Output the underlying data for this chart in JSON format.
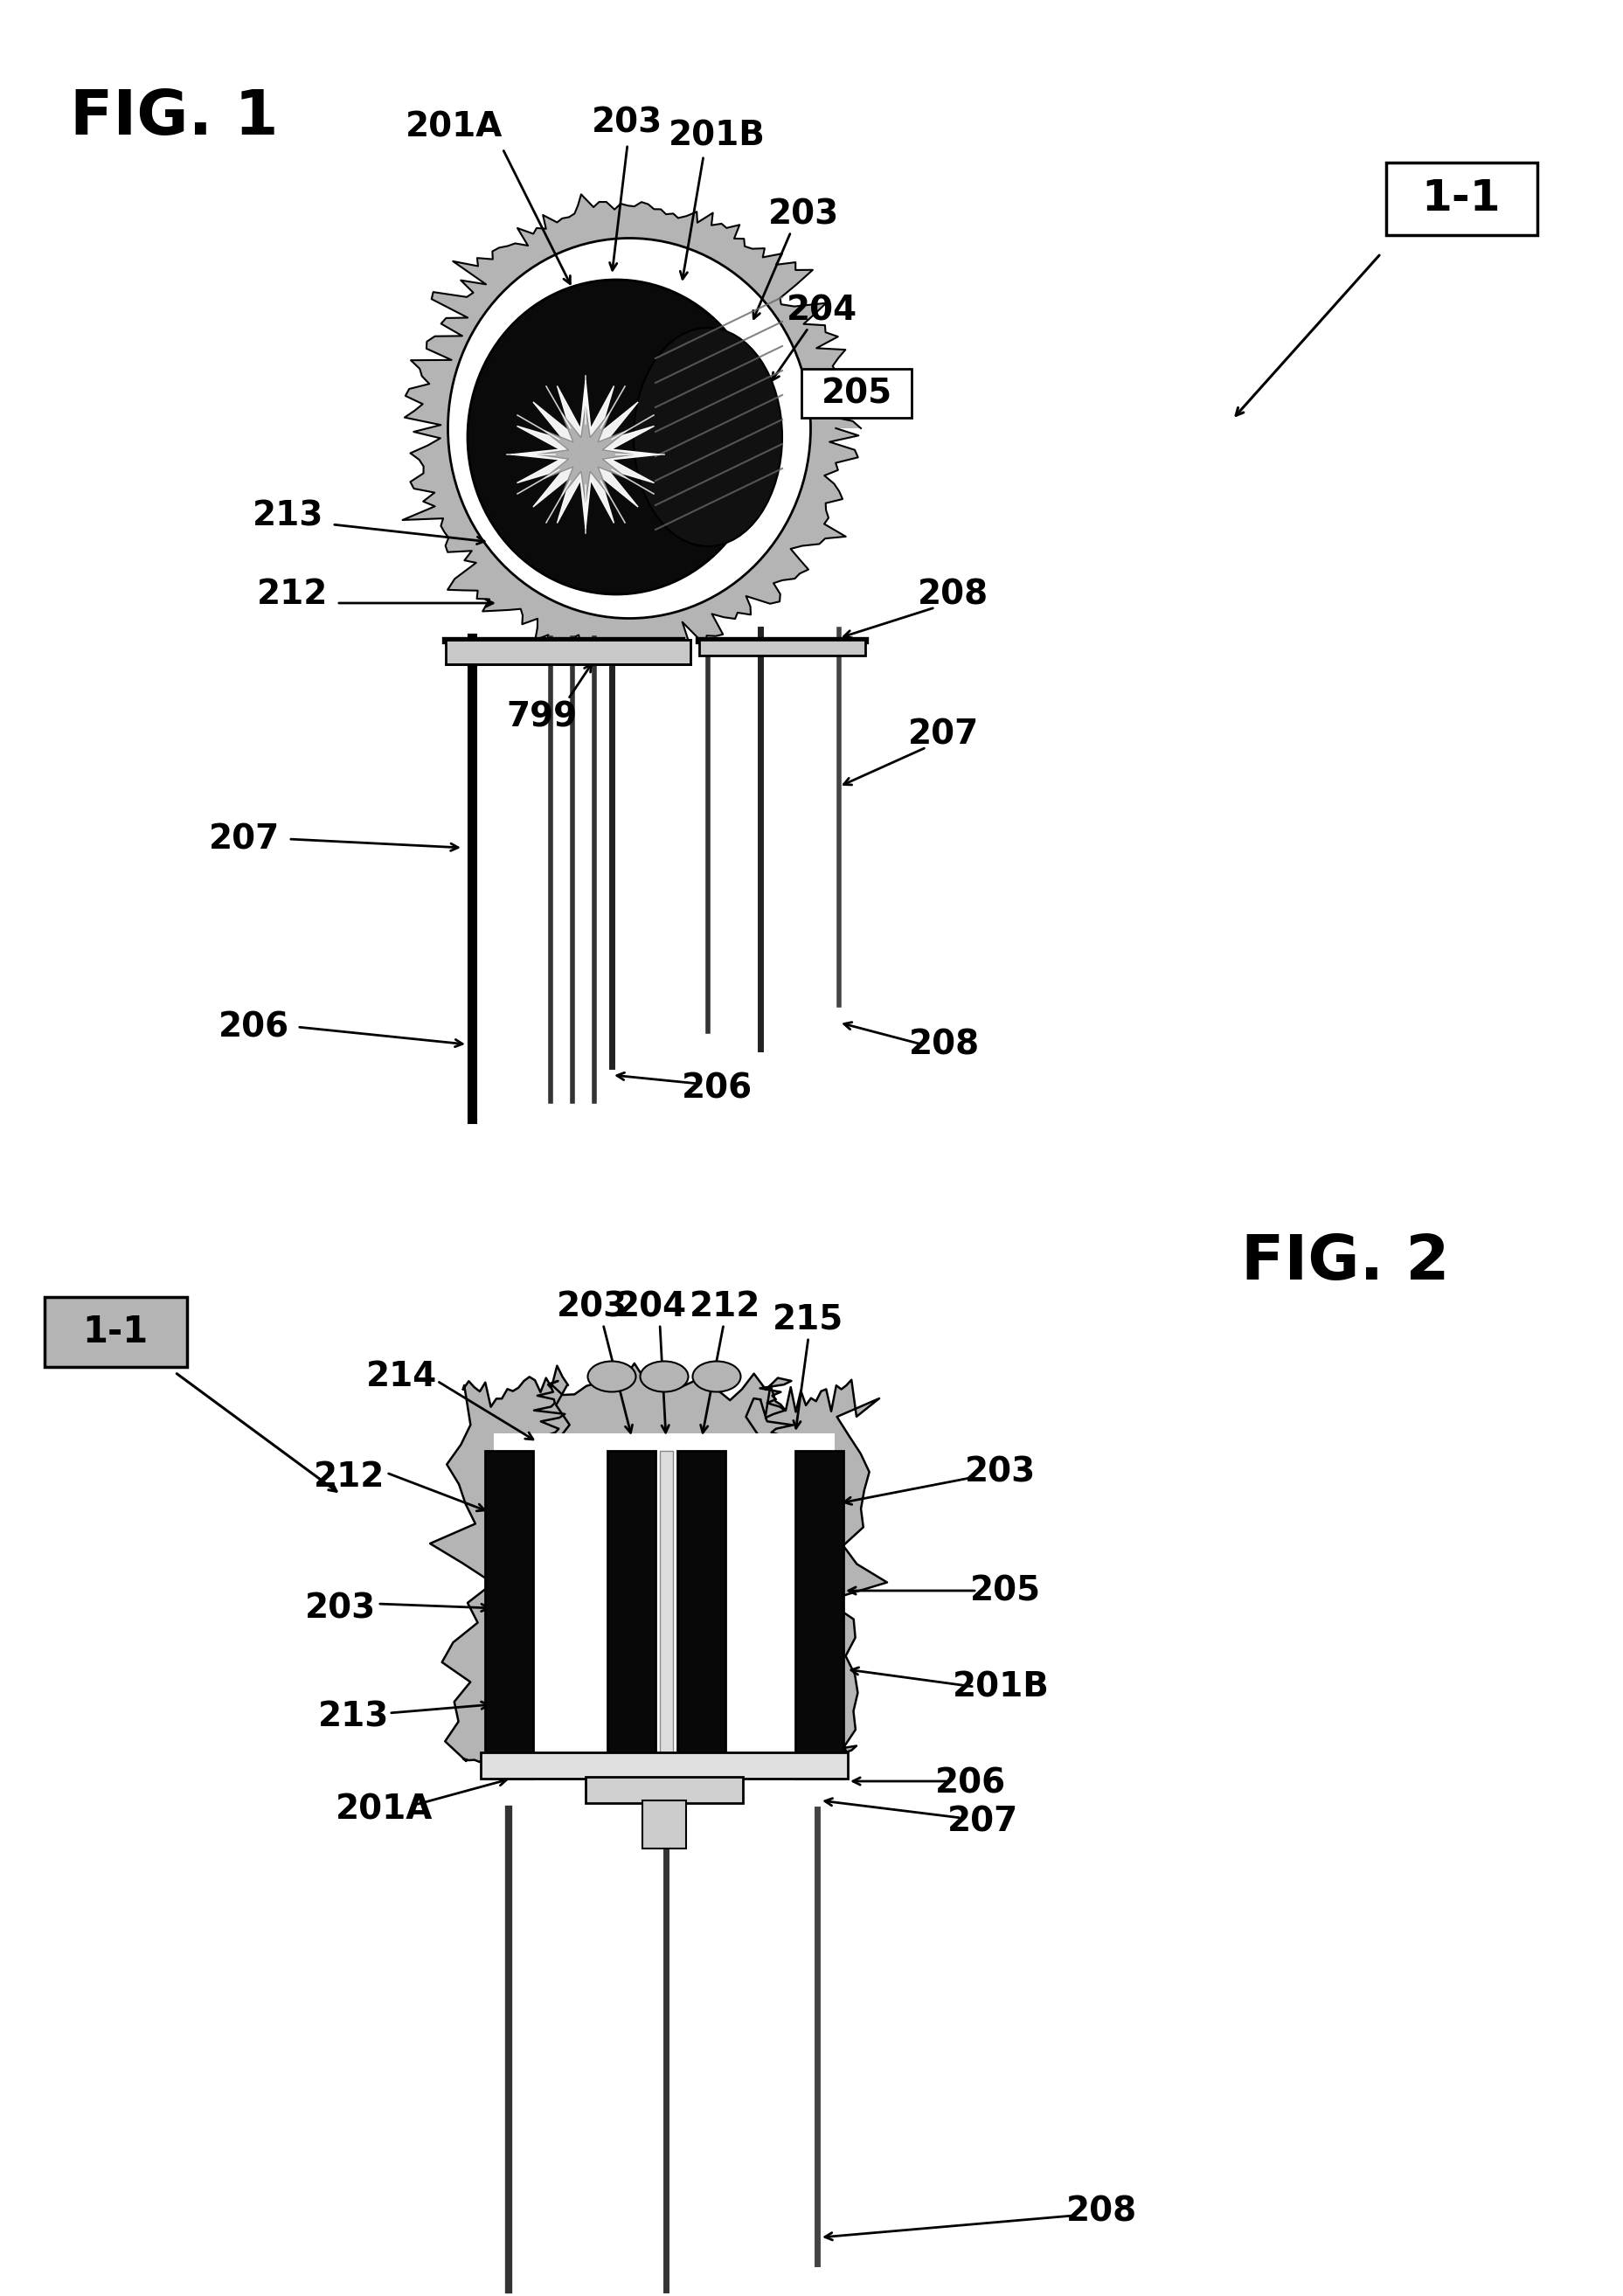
{
  "bg_color": "#ffffff",
  "fig_width": 18.58,
  "fig_height": 26.27,
  "fig1_label": "FIG. 1",
  "fig2_label": "FIG. 2",
  "section_label": "1-1",
  "black": "#000000",
  "white": "#ffffff",
  "gray_light": "#c8c8c8",
  "gray_med": "#909090",
  "gray_dark": "#404040",
  "gray_texture": "#b4b4b4",
  "label_fontsize": 28,
  "fig_label_fontsize": 52
}
